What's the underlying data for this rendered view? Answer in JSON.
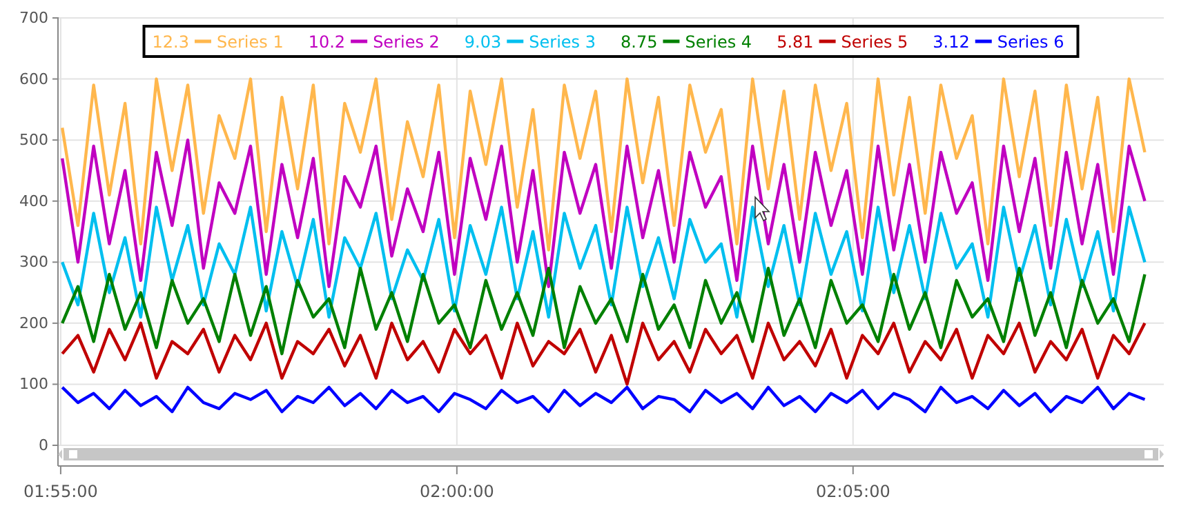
{
  "chart_data": {
    "type": "line",
    "x": [
      1.917,
      1.9203,
      1.9236,
      1.9269,
      1.9302,
      1.9335,
      1.9368,
      1.9401,
      1.9434,
      1.9467,
      1.95,
      1.9533,
      1.9566,
      1.9599,
      1.9632,
      1.9665,
      1.9698,
      1.9731,
      1.9764,
      1.9797,
      1.983,
      1.9863,
      1.9896,
      1.9929,
      1.9962,
      1.9995,
      2.0028,
      2.0061,
      2.0094,
      2.0127,
      2.016,
      2.0193,
      2.0226,
      2.0259,
      2.0292,
      2.0325,
      2.0358,
      2.0391,
      2.0424,
      2.0457,
      2.049,
      2.0523,
      2.0556,
      2.0589,
      2.0622,
      2.0655,
      2.0688,
      2.0721,
      2.0754,
      2.0787,
      2.082,
      2.0853,
      2.0886,
      2.0919,
      2.0952,
      2.0985,
      2.1018,
      2.1051,
      2.1084,
      2.1117,
      2.115,
      2.1183,
      2.1216,
      2.1249,
      2.1282,
      2.1315,
      2.1348,
      2.1381,
      2.1414,
      2.1447
    ],
    "series": [
      {
        "name": "Series 1",
        "color": "#ffb74d",
        "values": [
          520,
          360,
          590,
          410,
          560,
          330,
          600,
          450,
          590,
          380,
          540,
          470,
          600,
          350,
          570,
          420,
          590,
          330,
          560,
          480,
          600,
          370,
          530,
          440,
          590,
          340,
          580,
          460,
          600,
          390,
          550,
          320,
          590,
          470,
          580,
          350,
          600,
          430,
          570,
          360,
          590,
          480,
          550,
          330,
          600,
          420,
          580,
          370,
          590,
          450,
          560,
          340,
          600,
          410,
          570,
          380,
          590,
          470,
          540,
          330,
          600,
          440,
          580,
          360,
          590,
          420,
          570,
          350,
          600,
          480
        ]
      },
      {
        "name": "Series 2",
        "color": "#c000c0",
        "values": [
          470,
          300,
          490,
          330,
          450,
          270,
          480,
          360,
          500,
          290,
          430,
          380,
          490,
          280,
          460,
          340,
          470,
          260,
          440,
          390,
          490,
          310,
          420,
          350,
          480,
          280,
          470,
          370,
          490,
          300,
          450,
          260,
          480,
          380,
          460,
          290,
          490,
          340,
          450,
          300,
          480,
          390,
          440,
          270,
          490,
          330,
          460,
          300,
          480,
          360,
          450,
          280,
          490,
          320,
          460,
          300,
          480,
          380,
          430,
          270,
          490,
          350,
          470,
          290,
          480,
          330,
          460,
          280,
          490,
          400
        ]
      },
      {
        "name": "Series 3",
        "color": "#00bfef",
        "values": [
          300,
          230,
          380,
          250,
          340,
          210,
          390,
          270,
          360,
          230,
          330,
          280,
          390,
          220,
          350,
          260,
          370,
          210,
          340,
          290,
          380,
          240,
          320,
          270,
          370,
          220,
          360,
          280,
          390,
          240,
          350,
          210,
          380,
          290,
          360,
          230,
          390,
          260,
          340,
          240,
          370,
          300,
          330,
          210,
          390,
          260,
          360,
          230,
          380,
          280,
          350,
          220,
          390,
          250,
          360,
          240,
          380,
          290,
          330,
          210,
          390,
          270,
          360,
          230,
          370,
          260,
          350,
          220,
          390,
          300
        ]
      },
      {
        "name": "Series 4",
        "color": "#008000",
        "values": [
          200,
          260,
          170,
          280,
          190,
          250,
          160,
          270,
          200,
          240,
          170,
          280,
          180,
          260,
          150,
          270,
          210,
          240,
          160,
          290,
          190,
          250,
          170,
          280,
          200,
          230,
          160,
          270,
          190,
          250,
          180,
          290,
          160,
          260,
          200,
          240,
          170,
          280,
          190,
          230,
          160,
          270,
          200,
          250,
          170,
          290,
          180,
          240,
          160,
          270,
          200,
          230,
          170,
          280,
          190,
          250,
          160,
          270,
          210,
          240,
          170,
          290,
          180,
          250,
          160,
          270,
          200,
          240,
          170,
          280
        ]
      },
      {
        "name": "Series 5",
        "color": "#c00000",
        "values": [
          150,
          180,
          120,
          190,
          140,
          200,
          110,
          170,
          150,
          190,
          120,
          180,
          140,
          200,
          110,
          170,
          150,
          190,
          130,
          180,
          110,
          200,
          140,
          170,
          120,
          190,
          150,
          180,
          110,
          200,
          130,
          170,
          150,
          190,
          120,
          180,
          100,
          200,
          140,
          170,
          120,
          190,
          150,
          180,
          110,
          200,
          140,
          170,
          130,
          190,
          110,
          180,
          150,
          200,
          120,
          170,
          140,
          190,
          110,
          180,
          150,
          200,
          120,
          170,
          140,
          190,
          110,
          180,
          150,
          200
        ]
      },
      {
        "name": "Series 6",
        "color": "#0000ff",
        "values": [
          95,
          70,
          85,
          60,
          90,
          65,
          80,
          55,
          95,
          70,
          60,
          85,
          75,
          90,
          55,
          80,
          70,
          95,
          65,
          85,
          60,
          90,
          70,
          80,
          55,
          85,
          75,
          60,
          90,
          70,
          80,
          55,
          90,
          65,
          85,
          70,
          95,
          60,
          80,
          75,
          55,
          90,
          70,
          85,
          60,
          95,
          65,
          80,
          55,
          85,
          70,
          90,
          60,
          85,
          75,
          55,
          95,
          70,
          80,
          60,
          90,
          65,
          85,
          55,
          80,
          70,
          95,
          60,
          85,
          75
        ]
      }
    ],
    "xlim": [
      1.9161,
      2.1487
    ],
    "xticks": [
      {
        "value": 1.916667,
        "label": "01:55:00"
      },
      {
        "value": 2,
        "label": "02:00:00"
      },
      {
        "value": 2.083333,
        "label": "02:05:00"
      }
    ],
    "ylim": [
      0,
      700
    ],
    "yticks": [
      0,
      100,
      200,
      300,
      400,
      500,
      600,
      700
    ],
    "grid": true,
    "legend": "top",
    "annotations": [
      "12.3",
      "10.2",
      "9.03",
      "8.75",
      "5.81",
      "3.12"
    ]
  }
}
